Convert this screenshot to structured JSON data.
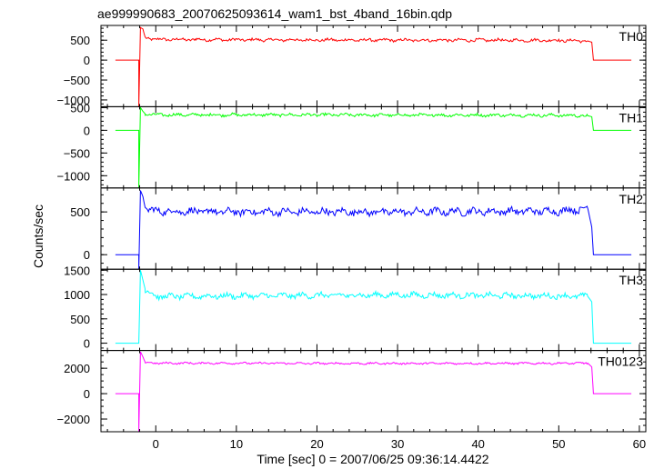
{
  "chart_data": {
    "type": "line",
    "title": "ae999990683_20070625093614_wam1_bst_4band_16bin.qdp",
    "xlabel": "Time [sec] 0 = 2007/06/25 09:36:14.4422",
    "ylabel": "Counts/sec",
    "xlim": [
      -6.8,
      60.8
    ],
    "xticks": [
      0,
      10,
      20,
      30,
      40,
      50,
      60
    ],
    "x_minor_step": 2,
    "grid": false,
    "legend": "none",
    "panels": [
      {
        "label": "TH0",
        "color": "#ff0000",
        "ylim": [
          -1170,
          870
        ],
        "yticks": [
          -1000,
          -500,
          0,
          500
        ],
        "y_minor_step": 100,
        "points": [
          [
            -5,
            0
          ],
          [
            -2.1,
            0
          ],
          [
            -2.1,
            -1170
          ],
          [
            -1.9,
            820
          ],
          [
            -1.6,
            780
          ],
          [
            -1.3,
            560
          ],
          [
            0,
            520
          ],
          [
            5,
            515
          ],
          [
            10,
            510
          ],
          [
            20,
            505
          ],
          [
            30,
            500
          ],
          [
            40,
            500
          ],
          [
            50,
            495
          ],
          [
            53.6,
            480
          ],
          [
            54.1,
            450
          ],
          [
            54.3,
            0
          ],
          [
            59,
            0
          ]
        ],
        "noise": 40
      },
      {
        "label": "TH1",
        "color": "#00ff00",
        "ylim": [
          -1270,
          520
        ],
        "yticks": [
          -1000,
          -500,
          0,
          500
        ],
        "y_minor_step": 100,
        "points": [
          [
            -5,
            0
          ],
          [
            -2.1,
            0
          ],
          [
            -2.1,
            -1270
          ],
          [
            -1.9,
            500
          ],
          [
            -1.6,
            420
          ],
          [
            -1.3,
            360
          ],
          [
            0,
            340
          ],
          [
            10,
            340
          ],
          [
            20,
            340
          ],
          [
            30,
            335
          ],
          [
            40,
            335
          ],
          [
            50,
            330
          ],
          [
            53.6,
            320
          ],
          [
            54.1,
            300
          ],
          [
            54.3,
            0
          ],
          [
            59,
            0
          ]
        ],
        "noise": 35
      },
      {
        "label": "TH2",
        "color": "#0000ff",
        "ylim": [
          -170,
          780
        ],
        "yticks": [
          0,
          500
        ],
        "y_minor_step": 100,
        "points": [
          [
            -5,
            0
          ],
          [
            -2.1,
            0
          ],
          [
            -2.1,
            -170
          ],
          [
            -1.9,
            750
          ],
          [
            -1.6,
            680
          ],
          [
            -1.3,
            540
          ],
          [
            0,
            510
          ],
          [
            10,
            500
          ],
          [
            20,
            500
          ],
          [
            30,
            500
          ],
          [
            40,
            505
          ],
          [
            50,
            510
          ],
          [
            53.6,
            540
          ],
          [
            54.1,
            320
          ],
          [
            54.3,
            0
          ],
          [
            59,
            0
          ]
        ],
        "noise": 45
      },
      {
        "label": "TH3",
        "color": "#00ffff",
        "ylim": [
          -150,
          1520
        ],
        "yticks": [
          0,
          500,
          1000,
          1500
        ],
        "y_minor_step": 100,
        "points": [
          [
            -5,
            0
          ],
          [
            -2.1,
            0
          ],
          [
            -2.1,
            0
          ],
          [
            -1.9,
            1500
          ],
          [
            -1.6,
            1300
          ],
          [
            -1.3,
            1100
          ],
          [
            0,
            960
          ],
          [
            10,
            970
          ],
          [
            20,
            980
          ],
          [
            30,
            990
          ],
          [
            40,
            980
          ],
          [
            50,
            970
          ],
          [
            53.6,
            960
          ],
          [
            54.1,
            850
          ],
          [
            54.3,
            0
          ],
          [
            59,
            0
          ]
        ],
        "noise": 60
      },
      {
        "label": "TH0123",
        "color": "#ff00ff",
        "ylim": [
          -3000,
          3400
        ],
        "yticks": [
          -2000,
          0,
          2000
        ],
        "y_minor_step": 500,
        "points": [
          [
            -5,
            0
          ],
          [
            -2.1,
            0
          ],
          [
            -2.1,
            -3000
          ],
          [
            -1.9,
            3300
          ],
          [
            -1.6,
            2900
          ],
          [
            -1.3,
            2450
          ],
          [
            0,
            2400
          ],
          [
            10,
            2400
          ],
          [
            20,
            2380
          ],
          [
            30,
            2380
          ],
          [
            40,
            2380
          ],
          [
            50,
            2390
          ],
          [
            53.6,
            2400
          ],
          [
            54.1,
            2100
          ],
          [
            54.3,
            0
          ],
          [
            59,
            0
          ]
        ],
        "noise": 80
      }
    ]
  }
}
